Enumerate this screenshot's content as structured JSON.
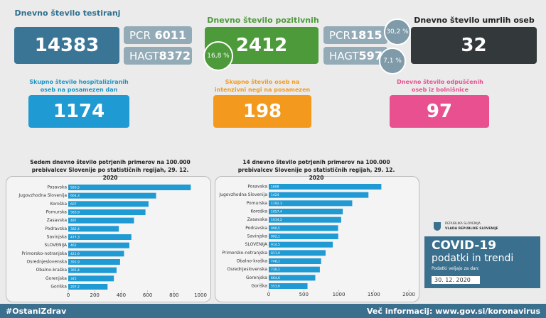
{
  "testiranj": {
    "title": "Dnevno število testiranj",
    "value": 14383,
    "pcr_label": "PCR",
    "pcr": 6011,
    "hagt_label": "HAGT",
    "hagt": 8372
  },
  "pozitivni": {
    "title": "Dnevno število pozitivnih",
    "value": 2412,
    "share": "16,8 %",
    "pcr_label": "PCR",
    "pcr": 1815,
    "pcr_share": "30,2 %",
    "hagt_label": "HAGT",
    "hagt": 597,
    "hagt_share": "7,1 %"
  },
  "umrli": {
    "title": "Dnevno število umrlih oseb",
    "value": 32
  },
  "hospitalizirani": {
    "title": "Skupno število hospitaliziranih oseb na posamezen dan",
    "value": 1174
  },
  "intenzivna": {
    "title": "Skupno število oseb na intenzivni negi na posamezen dan",
    "value": 198
  },
  "odpusceni": {
    "title": "Dnevno število odpuščenih oseb iz bolnišnice",
    "value": 97
  },
  "chart_data": [
    {
      "type": "bar",
      "orientation": "horizontal",
      "title": "Sedem dnevno število potrjenih primerov na 100.000 prebivalcev Slovenije po statističnih regijah, 29. 12. 2020",
      "categories": [
        "Posavska",
        "Jugovzhodna Slovenija",
        "Koroška",
        "Pomurska",
        "Zasavska",
        "Podravska",
        "Savinjska",
        "SLOVENIJA",
        "Primorsko-notranjska",
        "Osrednjeslovenska",
        "Obalno-kraška",
        "Gorenjska",
        "Goriška"
      ],
      "values": [
        926.5,
        664.3,
        607,
        583.9,
        497,
        382.4,
        477.3,
        462,
        421.9,
        391.9,
        365.4,
        345,
        297.2
      ],
      "value_labels": [
        "926,5",
        "664,3",
        "607",
        "583,9",
        "497",
        "382,4",
        "477,3",
        "462",
        "421,9",
        "391,9",
        "365,4",
        "345",
        "297,2"
      ],
      "color": "#1f9ad3",
      "xlim": [
        0,
        1000
      ],
      "xticks": [
        0,
        200,
        400,
        600,
        800,
        1000
      ]
    },
    {
      "type": "bar",
      "orientation": "horizontal",
      "title": "14 dnevno število potrjenih primerov na 100.000 prebivalcev Slovenije po statističnih regijah, 29. 12. 2020",
      "categories": [
        "Posavska",
        "Jugovzhodna Slovenija",
        "Pomurska",
        "Koroška",
        "Zasavska",
        "Podravska",
        "Savinjska",
        "SLOVENIJA",
        "Primorsko-notranjska",
        "Obalno-kraška",
        "Osrednjeslovenska",
        "Gorenjska",
        "Goriška"
      ],
      "values": [
        1608,
        1424,
        1192.3,
        1057.4,
        1034.2,
        990.5,
        992.1,
        914.5,
        811.9,
        748.1,
        730.1,
        664.6,
        553.6
      ],
      "value_labels": [
        "1608",
        "1424",
        "1192,3",
        "1057,4",
        "1034,2",
        "990,5",
        "992,1",
        "914,5",
        "811,9",
        "748,1",
        "730,1",
        "664,6",
        "553,6"
      ],
      "color": "#1f9ad3",
      "xlim": [
        0,
        2000
      ],
      "xticks": [
        0,
        500,
        1000,
        1500,
        2000
      ]
    }
  ],
  "logo": {
    "line1": "REPUBLIKA SLOVENIJA",
    "line2": "VLADA REPUBLIKE SLOVENIJE"
  },
  "covid": {
    "title": "COVID-19",
    "subtitle": "podatki in trendi",
    "date_label": "Podatki veljajo za dan:",
    "date": "30. 12. 2020"
  },
  "footer": {
    "hashtag": "#OstaniZdrav",
    "info": "Več informacij: www.gov.si/koronavirus"
  }
}
